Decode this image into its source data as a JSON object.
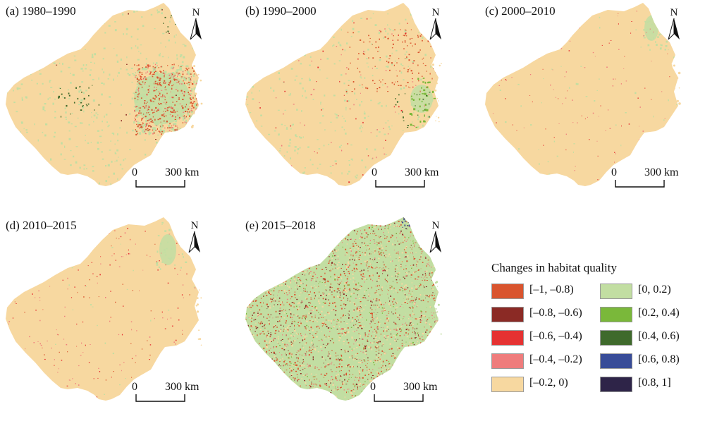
{
  "panels": [
    {
      "title": "(a) 1980–1990",
      "variant": "a"
    },
    {
      "title": "(b) 1990–2000",
      "variant": "b"
    },
    {
      "title": "(c) 2000–2010",
      "variant": "c"
    },
    {
      "title": "(d) 2010–2015",
      "variant": "d"
    },
    {
      "title": "(e) 2015–2018",
      "variant": "e"
    }
  ],
  "north_label": "N",
  "scale": {
    "start": "0",
    "end": "300 km"
  },
  "legend": {
    "title": "Changes in habitat quality",
    "classes": [
      {
        "label": "[–1, –0.8)",
        "color": "#d9542e"
      },
      {
        "label": "[–0.8, –0.6)",
        "color": "#8b2a25"
      },
      {
        "label": "[–0.6, –0.4)",
        "color": "#e53232"
      },
      {
        "label": "[–0.4, –0.2)",
        "color": "#ef7c7c"
      },
      {
        "label": "[–0.2, 0)",
        "color": "#f7d8a0"
      },
      {
        "label": "[0, 0.2)",
        "color": "#c2dea2"
      },
      {
        "label": "[0.2, 0.4)",
        "color": "#7ab83a"
      },
      {
        "label": "[0.4, 0.6)",
        "color": "#3f6a2c"
      },
      {
        "label": "[0.6, 0.8)",
        "color": "#384c98"
      },
      {
        "label": "[0.8, 1]",
        "color": "#2e2448"
      }
    ]
  }
}
